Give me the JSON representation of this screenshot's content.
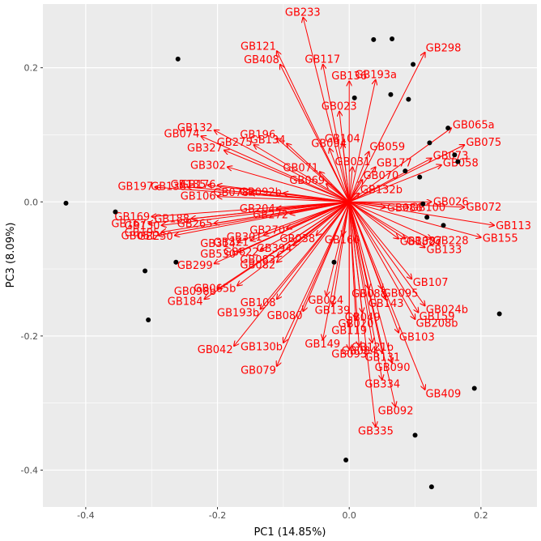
{
  "chart_data": {
    "type": "scatter",
    "subtype": "pca-biplot",
    "title": "",
    "xlabel": "PC1 (14.85%)",
    "ylabel": "PC3 (8.09%)",
    "xlim": [
      -0.465,
      0.285
    ],
    "ylim": [
      -0.455,
      0.295
    ],
    "xticks": [
      {
        "value": -0.4,
        "label": "-0.4"
      },
      {
        "value": -0.2,
        "label": "-0.2"
      },
      {
        "value": 0.0,
        "label": "0.0"
      },
      {
        "value": 0.2,
        "label": "0.2"
      }
    ],
    "yticks": [
      {
        "value": 0.2,
        "label": "0.2"
      },
      {
        "value": 0.0,
        "label": "0.0"
      },
      {
        "value": -0.2,
        "label": "-0.2"
      },
      {
        "value": -0.4,
        "label": "-0.4"
      }
    ],
    "grid": true,
    "colors": {
      "panel": "#ebebeb",
      "grid": "#ffffff",
      "points": "#000000",
      "arrows": "#ff0000",
      "tick_text": "#4d4d4d"
    },
    "points": [
      {
        "x": -0.26,
        "y": 0.213
      },
      {
        "x": 0.037,
        "y": 0.242
      },
      {
        "x": 0.065,
        "y": 0.243
      },
      {
        "x": 0.097,
        "y": 0.205
      },
      {
        "x": 0.008,
        "y": 0.155
      },
      {
        "x": 0.063,
        "y": 0.16
      },
      {
        "x": 0.09,
        "y": 0.153
      },
      {
        "x": 0.122,
        "y": 0.088
      },
      {
        "x": 0.15,
        "y": 0.11
      },
      {
        "x": 0.16,
        "y": 0.07
      },
      {
        "x": 0.165,
        "y": 0.06
      },
      {
        "x": 0.085,
        "y": 0.046
      },
      {
        "x": 0.107,
        "y": 0.037
      },
      {
        "x": -0.43,
        "y": -0.002
      },
      {
        "x": -0.355,
        "y": -0.015
      },
      {
        "x": 0.112,
        "y": -0.003
      },
      {
        "x": 0.118,
        "y": -0.023
      },
      {
        "x": 0.143,
        "y": -0.035
      },
      {
        "x": -0.263,
        "y": -0.09
      },
      {
        "x": -0.31,
        "y": -0.103
      },
      {
        "x": -0.023,
        "y": -0.09
      },
      {
        "x": -0.305,
        "y": -0.176
      },
      {
        "x": 0.228,
        "y": -0.167
      },
      {
        "x": 0.19,
        "y": -0.278
      },
      {
        "x": 0.1,
        "y": -0.348
      },
      {
        "x": -0.005,
        "y": -0.385
      },
      {
        "x": 0.125,
        "y": -0.425
      }
    ],
    "vectors": [
      {
        "label": "GB233",
        "x": -0.07,
        "y": 0.275
      },
      {
        "label": "GB298",
        "x": 0.115,
        "y": 0.223
      },
      {
        "label": "GB121",
        "x": -0.11,
        "y": 0.225
      },
      {
        "label": "GB408",
        "x": -0.105,
        "y": 0.205
      },
      {
        "label": "GB117",
        "x": -0.04,
        "y": 0.205
      },
      {
        "label": "GB136",
        "x": 0.0,
        "y": 0.18
      },
      {
        "label": "GB193a",
        "x": 0.04,
        "y": 0.182
      },
      {
        "label": "GB023",
        "x": -0.015,
        "y": 0.135
      },
      {
        "label": "GB065a",
        "x": 0.155,
        "y": 0.11
      },
      {
        "label": "GB075",
        "x": 0.175,
        "y": 0.085
      },
      {
        "label": "GB073",
        "x": 0.125,
        "y": 0.065
      },
      {
        "label": "GB058",
        "x": 0.14,
        "y": 0.055
      },
      {
        "label": "GB132",
        "x": -0.205,
        "y": 0.107
      },
      {
        "label": "GB074",
        "x": -0.225,
        "y": 0.098
      },
      {
        "label": "GB196",
        "x": -0.11,
        "y": 0.095
      },
      {
        "label": "GB134",
        "x": -0.095,
        "y": 0.087
      },
      {
        "label": "GB275",
        "x": -0.145,
        "y": 0.085
      },
      {
        "label": "GB327",
        "x": -0.19,
        "y": 0.077
      },
      {
        "label": "GB104",
        "x": -0.01,
        "y": 0.087
      },
      {
        "label": "GB094",
        "x": -0.03,
        "y": 0.08
      },
      {
        "label": "GB059",
        "x": 0.03,
        "y": 0.075
      },
      {
        "label": "GB302",
        "x": -0.185,
        "y": 0.052
      },
      {
        "label": "GB071",
        "x": -0.045,
        "y": 0.045
      },
      {
        "label": "GB031",
        "x": 0.005,
        "y": 0.052
      },
      {
        "label": "GB177",
        "x": 0.04,
        "y": 0.052
      },
      {
        "label": "GB070",
        "x": 0.02,
        "y": 0.033
      },
      {
        "label": "GB069",
        "x": -0.035,
        "y": 0.027
      },
      {
        "label": "GB176",
        "x": -0.2,
        "y": 0.025
      },
      {
        "label": "GB185",
        "x": -0.215,
        "y": 0.025
      },
      {
        "label": "GB197",
        "x": -0.295,
        "y": 0.022
      },
      {
        "label": "GB138",
        "x": -0.245,
        "y": 0.022
      },
      {
        "label": "GB106",
        "x": -0.2,
        "y": 0.008
      },
      {
        "label": "GB078",
        "x": -0.15,
        "y": 0.013
      },
      {
        "label": "GB092b",
        "x": -0.1,
        "y": 0.013
      },
      {
        "label": "GB132b",
        "x": 0.015,
        "y": 0.013
      },
      {
        "label": "GB026",
        "x": 0.125,
        "y": 0.0
      },
      {
        "label": "GB086",
        "x": 0.055,
        "y": -0.008
      },
      {
        "label": "GB100",
        "x": 0.09,
        "y": -0.008
      },
      {
        "label": "GB072",
        "x": 0.175,
        "y": -0.008
      },
      {
        "label": "GB113",
        "x": 0.22,
        "y": -0.035
      },
      {
        "label": "GB155",
        "x": 0.2,
        "y": -0.053
      },
      {
        "label": "GB228",
        "x": 0.125,
        "y": -0.055
      },
      {
        "label": "GB133",
        "x": 0.115,
        "y": -0.068
      },
      {
        "label": "GB087",
        "x": 0.085,
        "y": -0.055
      },
      {
        "label": "GB132c",
        "x": 0.075,
        "y": -0.055
      },
      {
        "label": "GB204",
        "x": -0.11,
        "y": -0.01
      },
      {
        "label": "GB272",
        "x": -0.09,
        "y": -0.018
      },
      {
        "label": "GB167",
        "x": -0.305,
        "y": -0.032
      },
      {
        "label": "GB169",
        "x": -0.3,
        "y": -0.022
      },
      {
        "label": "GB130",
        "x": -0.285,
        "y": -0.035
      },
      {
        "label": "GB195",
        "x": -0.285,
        "y": -0.045
      },
      {
        "label": "GB188",
        "x": -0.24,
        "y": -0.025
      },
      {
        "label": "GB051",
        "x": -0.29,
        "y": -0.05
      },
      {
        "label": "GB250",
        "x": -0.265,
        "y": -0.05
      },
      {
        "label": "GB265",
        "x": -0.205,
        "y": -0.032
      },
      {
        "label": "GB301",
        "x": -0.13,
        "y": -0.05
      },
      {
        "label": "GB270",
        "x": -0.095,
        "y": -0.04
      },
      {
        "label": "GB038",
        "x": -0.05,
        "y": -0.05
      },
      {
        "label": "GB160",
        "x": -0.01,
        "y": -0.05
      },
      {
        "label": "GB299",
        "x": -0.205,
        "y": -0.092
      },
      {
        "label": "GB314",
        "x": -0.17,
        "y": -0.06
      },
      {
        "label": "GB530",
        "x": -0.17,
        "y": -0.075
      },
      {
        "label": "GB321",
        "x": -0.15,
        "y": -0.058
      },
      {
        "label": "GB622",
        "x": -0.135,
        "y": -0.072
      },
      {
        "label": "GB082",
        "x": -0.11,
        "y": -0.09
      },
      {
        "label": "GB083",
        "x": -0.11,
        "y": -0.082
      },
      {
        "label": "GB394",
        "x": -0.085,
        "y": -0.065
      },
      {
        "label": "GB065b",
        "x": -0.17,
        "y": -0.125
      },
      {
        "label": "GB098b",
        "x": -0.2,
        "y": -0.13
      },
      {
        "label": "GB184",
        "x": -0.22,
        "y": -0.145
      },
      {
        "label": "GB108",
        "x": -0.11,
        "y": -0.145
      },
      {
        "label": "GB193b",
        "x": -0.135,
        "y": -0.16
      },
      {
        "label": "GB080",
        "x": -0.07,
        "y": -0.163
      },
      {
        "label": "GB024",
        "x": -0.035,
        "y": -0.14
      },
      {
        "label": "GB139",
        "x": -0.025,
        "y": -0.155
      },
      {
        "label": "GB042",
        "x": -0.175,
        "y": -0.215
      },
      {
        "label": "GB130b",
        "x": -0.1,
        "y": -0.21
      },
      {
        "label": "GB079",
        "x": -0.11,
        "y": -0.245
      },
      {
        "label": "GB149",
        "x": -0.04,
        "y": -0.205
      },
      {
        "label": "GB093",
        "x": 0.0,
        "y": -0.22
      },
      {
        "label": "GB119",
        "x": 0.0,
        "y": -0.185
      },
      {
        "label": "GB020",
        "x": 0.01,
        "y": -0.175
      },
      {
        "label": "GB049",
        "x": 0.02,
        "y": -0.165
      },
      {
        "label": "GB088",
        "x": 0.03,
        "y": -0.13
      },
      {
        "label": "GB095",
        "x": 0.05,
        "y": -0.13
      },
      {
        "label": "GB143",
        "x": 0.055,
        "y": -0.145
      },
      {
        "label": "GB107",
        "x": 0.095,
        "y": -0.115
      },
      {
        "label": "GB024b",
        "x": 0.115,
        "y": -0.155
      },
      {
        "label": "GB159",
        "x": 0.105,
        "y": -0.165
      },
      {
        "label": "GB208b",
        "x": 0.1,
        "y": -0.175
      },
      {
        "label": "GB103",
        "x": 0.075,
        "y": -0.195
      },
      {
        "label": "GB084",
        "x": 0.015,
        "y": -0.215
      },
      {
        "label": "GB121b",
        "x": 0.035,
        "y": -0.21
      },
      {
        "label": "GB131",
        "x": 0.05,
        "y": -0.225
      },
      {
        "label": "GB090",
        "x": 0.065,
        "y": -0.24
      },
      {
        "label": "GB334",
        "x": 0.05,
        "y": -0.265
      },
      {
        "label": "GB409",
        "x": 0.115,
        "y": -0.28
      },
      {
        "label": "GB092",
        "x": 0.07,
        "y": -0.305
      },
      {
        "label": "GB335",
        "x": 0.04,
        "y": -0.335
      }
    ]
  }
}
